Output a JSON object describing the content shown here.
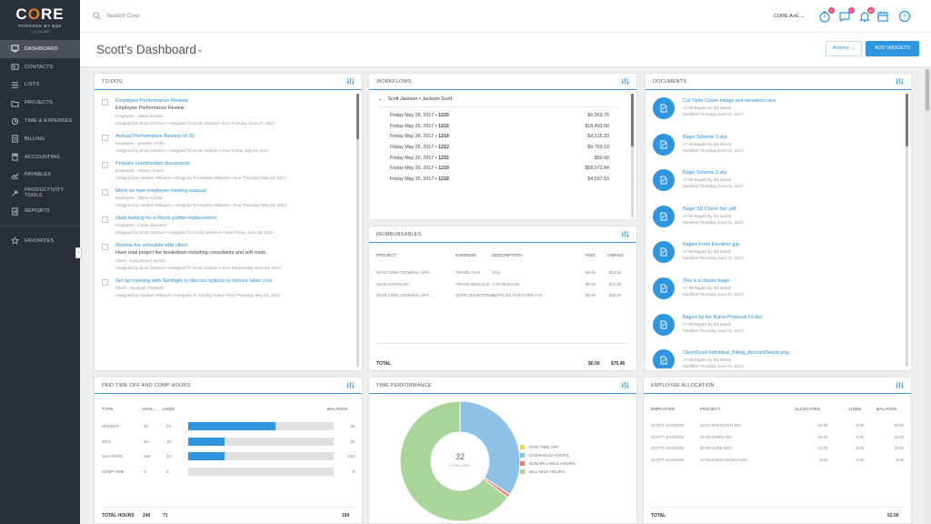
{
  "app": {
    "logo": "CORE",
    "logo_sub": "POWERED BY BQE",
    "version": "7.8.166.586"
  },
  "sidebar": {
    "items": [
      {
        "label": "DASHBOARD",
        "icon": "dashboard-icon"
      },
      {
        "label": "CONTACTS",
        "icon": "contacts-icon"
      },
      {
        "label": "LISTS",
        "icon": "lists-icon"
      },
      {
        "label": "PROJECTS",
        "icon": "projects-icon"
      },
      {
        "label": "TIME & EXPENSES",
        "icon": "time-expenses-icon"
      },
      {
        "label": "BILLING",
        "icon": "billing-icon"
      },
      {
        "label": "ACCOUNTING",
        "icon": "accounting-icon"
      },
      {
        "label": "PAYABLES",
        "icon": "payables-icon"
      },
      {
        "label": "PRODUCTIVITY TOOLS",
        "icon": "productivity-tools-icon"
      },
      {
        "label": "REPORTS",
        "icon": "reports-icon"
      }
    ],
    "favorites": "FAVORITES",
    "collapse": "‹"
  },
  "topbar": {
    "search_placeholder": "Search Core",
    "company": "CORE A+E",
    "badges": {
      "timer": "1",
      "chat": "0",
      "bell": "43"
    }
  },
  "header": {
    "title": "Scott's Dashboard",
    "actions": "Actions",
    "add_widgets": "ADD WIDGETS"
  },
  "todos": {
    "title": "TO-DOS",
    "items": [
      {
        "title": "Employee Performance Review",
        "desc": "Employee Performance Review",
        "detail": "Employee : Jason Acosta",
        "meta": "Assigned by Scott Jackson • Assigned To Scott Jackson • Due Tuesday June 27, 2017"
      },
      {
        "title": "Annual Performance Review of JS",
        "desc": "",
        "detail": "Employee : Jennifer Smith",
        "meta": "Assigned by Scott Jackson • Assigned To Scott Jackson • Due Friday July 28, 2017"
      },
      {
        "title": "Prepare construction documents",
        "desc": "",
        "detail": "Employee : Steven Cohen",
        "meta": "Assigned by Heather Williams • Assigned To Heather Williams • Due Thursday May 04, 2017"
      },
      {
        "title": "Work on new employee training manual",
        "desc": "",
        "detail": "Employee : Jason Acosta",
        "meta": "Assigned by Heather Williams • Assigned To Heather Williams • Due Thursday May 04, 2017"
      },
      {
        "title": "Start looking for a Ricoh plotter replacement",
        "desc": "",
        "detail": "Employee : Curtis Jameson",
        "meta": "Assigned by Scott Jackson • Assigned To Curtis Jameson • Due Friday June 09, 2017"
      },
      {
        "title": "Review fee schedule with client",
        "desc": "Have total project fee breakdown including consultants and soft costs.",
        "detail": "Client : Long Beach Sports",
        "meta": "Assigned by Scott Jackson • Assigned To Scott Jackson • Due Wednesday June 28, 2017"
      },
      {
        "title": "Set up meeting with Spotlight to discuss options to reduce labor cost",
        "desc": "",
        "detail": "Client : Spotlight Theaters",
        "meta": "Assigned by Heather Williams • Assigned To Jonday Soteri • Due Thursday May 04, 2017"
      }
    ]
  },
  "workflows": {
    "title": "WORKFLOWS",
    "group": "Scott Jackson • Jackson Scott",
    "rows": [
      {
        "date": "Friday May 26, 2017 • ",
        "id": "1220",
        "amount": "$6,953.75"
      },
      {
        "date": "Friday May 26, 2017 • ",
        "id": "1222",
        "amount": "$18,403.50"
      },
      {
        "date": "Friday May 26, 2017 • ",
        "id": "1214",
        "amount": "$4,315.33"
      },
      {
        "date": "Friday May 26, 2017 • ",
        "id": "1212",
        "amount": "$9,769.53"
      },
      {
        "date": "Friday May 26, 2017 • ",
        "id": "1215",
        "amount": "$50.00"
      },
      {
        "date": "Friday May 26, 2017 • ",
        "id": "1210",
        "amount": "$58,072.64"
      },
      {
        "date": "Friday May 26, 2017 • ",
        "id": "1218",
        "amount": "$4,597.53"
      }
    ]
  },
  "reimbursables": {
    "title": "REIMBURSABLES",
    "headers": [
      "PROJECT",
      "EXPENSE",
      "DESCRIPTION",
      "PAID",
      "UNPAID"
    ],
    "rows": [
      {
        "project": "00-00 CORE GENERAL OFFI...",
        "expense": "TRAVEL/TAXI",
        "description": "TAXI",
        "paid": "$0.00",
        "unpaid": "$12.50"
      },
      {
        "project": "15-08 ASPEN DD:",
        "expense": "TRAVEL/MILEAGE",
        "description": "CAR MILEAGE",
        "paid": "$0.00",
        "unpaid": "$12.96"
      },
      {
        "project": "00-00 CORE GENERAL OFFI...",
        "expense": "SUPPLIES/INTERNAL",
        "description": "SUPPLIES FOR CORE A+E",
        "paid": "$0.00",
        "unpaid": "$45.00"
      }
    ],
    "total_label": "TOTAL",
    "total_paid": "$0.00",
    "total_unpaid": "$70.46"
  },
  "documents": {
    "title": "DOCUMENTS",
    "items": [
      {
        "name": "Cal Triple Crown milage and elevations.xlsx",
        "sub": "17-09 Bagels by the Barrel",
        "mod": "Modified Thursday June 01, 2017"
      },
      {
        "name": "Bagel Scheme 3.skp",
        "sub": "17-09 Bagels by the Barrel",
        "mod": "Modified Thursday June 01, 2017"
      },
      {
        "name": "Bagel Scheme 2.skp",
        "sub": "17-09 Bagels by the Barrel",
        "mod": "Modified Thursday June 01, 2017"
      },
      {
        "name": "Bagel SD Check Set .pdf",
        "sub": "17-09 Bagels by the Barrel",
        "mod": "Modified Thursday June 01, 2017"
      },
      {
        "name": "Bagels Front Elevation.jpg",
        "sub": "17-09 Bagels by the Barrel",
        "mod": "Modified Thursday June 01, 2017"
      },
      {
        "name": "This is a classic bagel",
        "sub": "17-09 Bagels by the Barrel",
        "mod": "Modified Thursday June 01, 2017"
      },
      {
        "name": "Bagels by the Barrel Proposal #1.doc",
        "sub": "17-09 Bagels by the Barrel",
        "mod": "Modified Thursday June 01, 2017"
      },
      {
        "name": "ClientDetail-Individual_Billing_AccountDetails.png",
        "sub": "17-09 Bagels by the Barrel",
        "mod": "Modified Thursday June 01, 2017"
      }
    ]
  },
  "pto": {
    "title": "PAID TIME OFF AND COMP HOURS",
    "headers": [
      "TYPE",
      "AVAIL...",
      "USED",
      "BALANCE"
    ],
    "rows": [
      {
        "type": "HOLIDAY",
        "avail": "40",
        "used": "24",
        "balance": "16",
        "fill": 0.6
      },
      {
        "type": "SICK",
        "avail": "40",
        "used": "10",
        "balance": "30",
        "fill": 0.25
      },
      {
        "type": "VACATION",
        "avail": "160",
        "used": "37",
        "balance": "123",
        "fill": 0.25
      },
      {
        "type": "COMP TIME",
        "avail": "0",
        "used": "0",
        "balance": "0",
        "fill": 0
      }
    ],
    "total_label": "TOTAL HOURS",
    "total_avail": "240",
    "total_used": "71",
    "total_balance": "169"
  },
  "time_performance": {
    "title": "TIME PERFORMANCE",
    "center_value": "32",
    "center_label": "TOTAL HRS."
  },
  "chart_data": {
    "type": "pie",
    "title": "",
    "labels": [
      "PAID TIME OFF",
      "OVERHEAD HOURS",
      "NON-BILLABLE HOURS",
      "BILLABLE HOURS"
    ],
    "values": [
      0,
      11,
      0.3,
      20.7
    ],
    "colors": [
      "#f2d16b",
      "#8dc2e6",
      "#ec7f6e",
      "#a9d49a"
    ],
    "total": 32,
    "legend": "right"
  },
  "employee_allocation": {
    "title": "EMPLOYEE ALLOCATION",
    "headers": [
      "EMPLOYEE",
      "PROJECT",
      "ALLOCATED",
      "USED",
      "BALANCE"
    ],
    "rows": [
      {
        "employee": "SCOTT JACKSON",
        "project": "16-02 SPOTLIGHT DD:",
        "allocated": "16.00",
        "used": "0.00",
        "balance": "16.00"
      },
      {
        "employee": "SCOTT JACKSON",
        "project": "15-08 ASPEN DD:",
        "allocated": "16.00",
        "used": "0.00",
        "balance": "16.00"
      },
      {
        "employee": "SCOTT JACKSON",
        "project": "00-00 CORE DEV:",
        "allocated": "12.00",
        "used": "0.00",
        "balance": "12.00"
      },
      {
        "employee": "SCOTT JACKSON",
        "project": "17-04 SANTA MONICA DD:",
        "allocated": "8.00",
        "used": "0.00",
        "balance": "8.00"
      }
    ],
    "total_label": "TOTAL",
    "total_balance": "52.00"
  },
  "colors": {
    "accent": "#2f95de",
    "sidebar": "#2a3037",
    "logo_accent": "#e67e22",
    "badge": "#e84c7c"
  }
}
